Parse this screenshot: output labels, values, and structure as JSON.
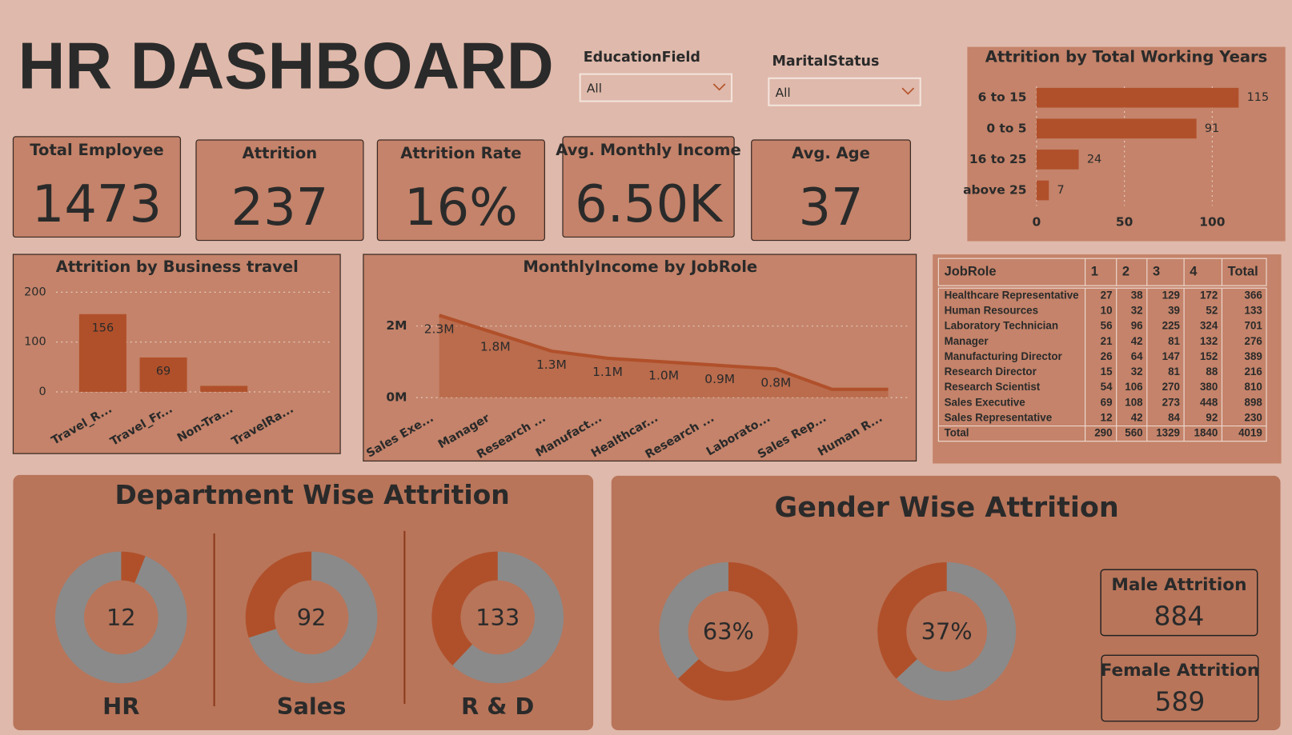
{
  "header": {
    "title": "HR DASHBOARD"
  },
  "filters": [
    {
      "label": "EducationField",
      "value": "All"
    },
    {
      "label": "MaritalStatus",
      "value": "All"
    }
  ],
  "kpis": [
    {
      "label": "Total Employee",
      "value": "1473"
    },
    {
      "label": "Attrition",
      "value": "237"
    },
    {
      "label": "Attrition Rate",
      "value": "16%"
    },
    {
      "label": "Avg. Monthly Income",
      "value": "6.50K"
    },
    {
      "label": "Avg. Age",
      "value": "37"
    }
  ],
  "gender_kpis": [
    {
      "label": "Male Attrition",
      "value": "884"
    },
    {
      "label": "Female Attrition",
      "value": "589"
    }
  ],
  "sections": {
    "department": "Department Wise Attrition",
    "gender": "Gender Wise Attrition"
  },
  "table": {
    "columns": [
      "JobRole",
      "1",
      "2",
      "3",
      "4",
      "Total"
    ],
    "rows": [
      [
        "Healthcare Representative",
        27,
        38,
        129,
        172,
        366
      ],
      [
        "Human Resources",
        10,
        32,
        39,
        52,
        133
      ],
      [
        "Laboratory Technician",
        56,
        96,
        225,
        324,
        701
      ],
      [
        "Manager",
        21,
        42,
        81,
        132,
        276
      ],
      [
        "Manufacturing Director",
        26,
        64,
        147,
        152,
        389
      ],
      [
        "Research Director",
        15,
        32,
        81,
        88,
        216
      ],
      [
        "Research Scientist",
        54,
        106,
        270,
        380,
        810
      ],
      [
        "Sales Executive",
        69,
        108,
        273,
        448,
        898
      ],
      [
        "Sales Representative",
        12,
        42,
        84,
        92,
        230
      ],
      [
        "Total",
        290,
        560,
        1329,
        1840,
        4019
      ]
    ]
  },
  "chart_data": [
    {
      "type": "bar",
      "orientation": "horizontal",
      "title": "Attrition by Total Working Years",
      "categories": [
        "6 to 15",
        "0 to 5",
        "16 to 25",
        "above 25"
      ],
      "values": [
        115,
        91,
        24,
        7
      ],
      "color": "#b0502a",
      "xlim": [
        0,
        128
      ],
      "xticks": [
        0,
        50,
        100
      ],
      "grid": true
    },
    {
      "type": "bar",
      "title": "Attrition by Business travel",
      "categories": [
        "Travel_R...",
        "Travel_Fr...",
        "Non-Tra...",
        "TravelRa..."
      ],
      "values": [
        156,
        69,
        12,
        0
      ],
      "value_labels": [
        "156",
        "69",
        null,
        null
      ],
      "color": "#b0502a",
      "ylim": [
        0,
        200
      ],
      "yticks": [
        0,
        100,
        200
      ],
      "grid": true
    },
    {
      "type": "area",
      "title": "MonthlyIncome by JobRole",
      "categories": [
        "Sales Exe...",
        "Manager",
        "Research ...",
        "Manufact...",
        "Healthcar...",
        "Research ...",
        "Laborato...",
        "Sales Rep...",
        "Human R..."
      ],
      "values": [
        2300000,
        1800000,
        1300000,
        1100000,
        1000000,
        900000,
        800000,
        230000,
        230000
      ],
      "value_labels": [
        "2.3M",
        "1.8M",
        "1.3M",
        "1.1M",
        "1.0M",
        "0.9M",
        "0.8M",
        null,
        null
      ],
      "color": "#b0502a",
      "ylim": [
        0,
        2600000
      ],
      "yticks": [
        {
          "value": 0,
          "label": "0M"
        },
        {
          "value": 2000000,
          "label": "2M"
        }
      ],
      "grid": true
    },
    {
      "type": "pie",
      "title": "HR",
      "center_label": "12",
      "values": [
        6,
        94
      ],
      "colors": [
        "#b0502a",
        "#8a8a8a"
      ]
    },
    {
      "type": "pie",
      "title": "Sales",
      "center_label": "92",
      "values": [
        70,
        30
      ],
      "colors": [
        "#8a8a8a",
        "#b0502a"
      ]
    },
    {
      "type": "pie",
      "title": "R & D",
      "center_label": "133",
      "values": [
        62,
        38
      ],
      "colors": [
        "#8a8a8a",
        "#b0502a"
      ]
    },
    {
      "type": "pie",
      "center_label": "63%",
      "values": [
        63,
        37
      ],
      "colors": [
        "#b0502a",
        "#8a8a8a"
      ]
    },
    {
      "type": "pie",
      "center_label": "37%",
      "values": [
        63,
        37
      ],
      "colors": [
        "#8a8a8a",
        "#b0502a"
      ]
    }
  ]
}
